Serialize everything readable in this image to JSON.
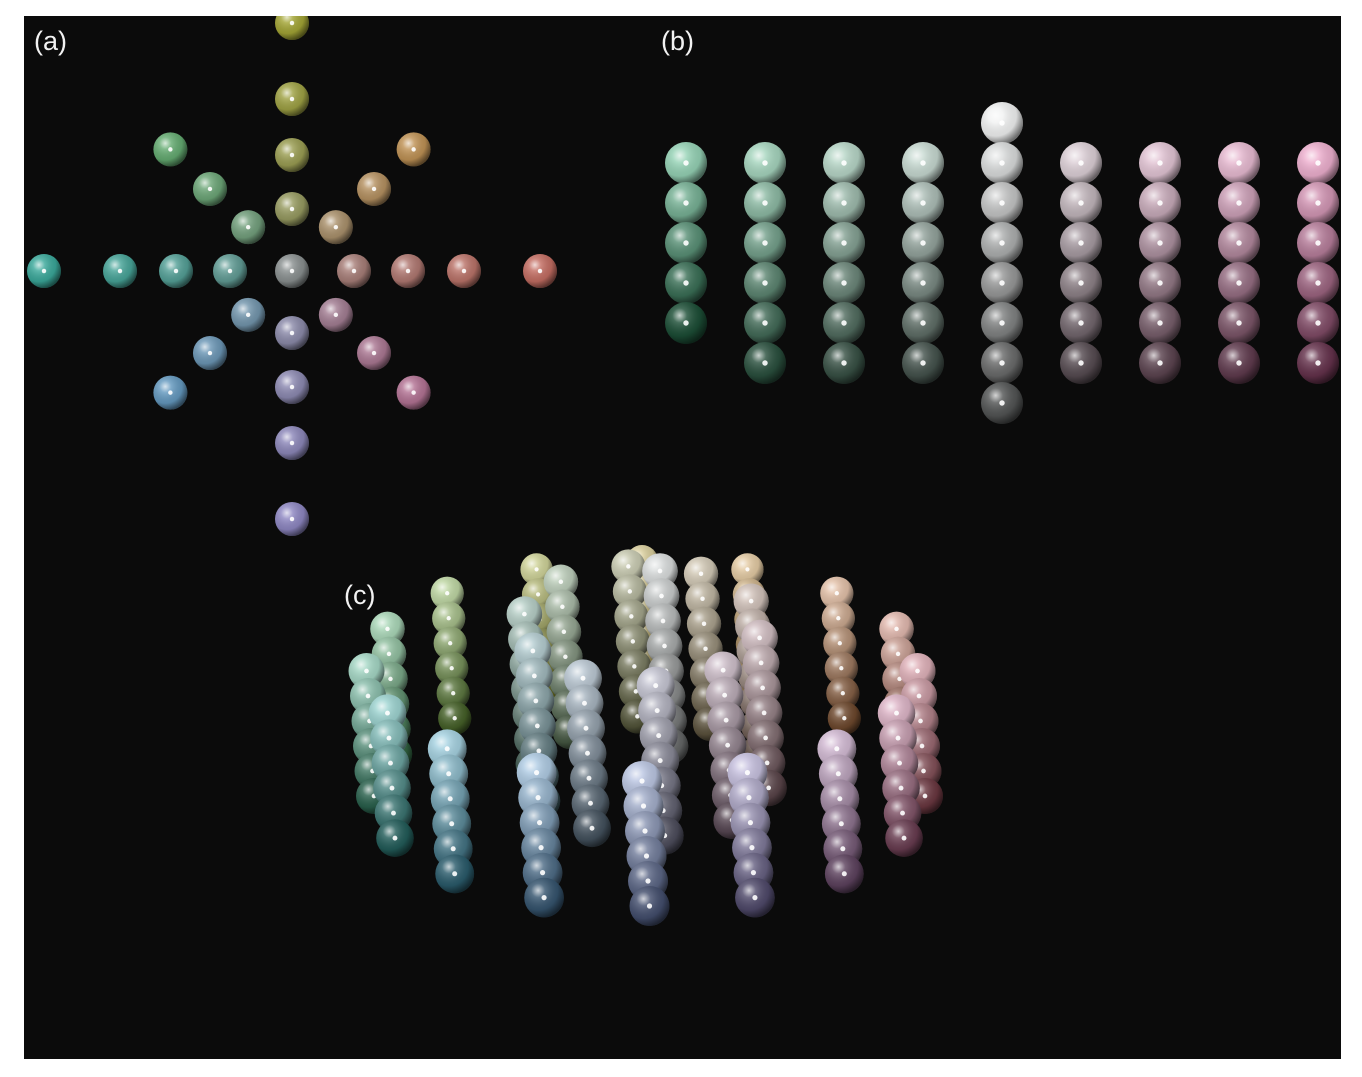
{
  "panels": {
    "a": {
      "label": "(a)"
    },
    "b": {
      "label": "(b)"
    },
    "c": {
      "label": "(c)"
    }
  },
  "colors": {
    "background": "#0b0b0b",
    "hue_ring": [
      "#3aa89a",
      "#4eb088",
      "#58b070",
      "#7fae48",
      "#9ea632",
      "#b2a03c",
      "#c99a46",
      "#c88450",
      "#c57a5a",
      "#c0606a",
      "#c06c8a",
      "#b86e9c",
      "#9882bc",
      "#8a88c4",
      "#6e92c8",
      "#5a9cc8",
      "#48a8c0"
    ],
    "neutral": "#8a9090"
  },
  "column_gradient": {
    "start_hue": "green",
    "middle": "gray",
    "end_hue": "pink"
  }
}
